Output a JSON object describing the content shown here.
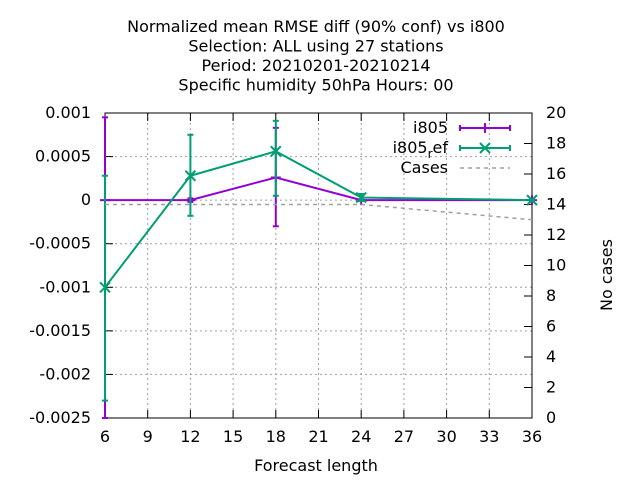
{
  "chart_data": {
    "type": "line",
    "title_lines": [
      "Normalized mean RMSE diff (90% conf) vs i800",
      "Selection: ALL using    27 stations",
      "Period: 20210201-20210214",
      "Specific humidity 50hPa   Hours:  00"
    ],
    "xlabel": "Forecast length",
    "ylabel": "",
    "y2label": "No cases",
    "xlim": [
      6,
      36
    ],
    "ylim": [
      -0.0025,
      0.001
    ],
    "y2lim": [
      0,
      20
    ],
    "xticks": [
      6,
      9,
      12,
      15,
      18,
      21,
      24,
      27,
      30,
      33,
      36
    ],
    "yticks": [
      0.001,
      0.0005,
      0,
      -0.0005,
      -0.001,
      -0.0015,
      -0.002,
      -0.0025
    ],
    "ytick_labels": [
      "0.001",
      "0.0005",
      "0",
      "-0.0005",
      "-0.001",
      "-0.0015",
      "-0.002",
      "-0.0025"
    ],
    "y2ticks": [
      0,
      2,
      4,
      6,
      8,
      10,
      12,
      14,
      16,
      18,
      20
    ],
    "grid": true,
    "legend_position": "top-right",
    "series": [
      {
        "name": "i805",
        "color": "#9400d3",
        "marker": "plus",
        "axis": "y",
        "x": [
          6,
          12,
          18,
          24,
          36
        ],
        "y": [
          0.0,
          0.0,
          0.00026,
          0.0,
          0.0
        ],
        "err_low": [
          -0.0025,
          -2e-05,
          -0.0003,
          -1e-05,
          -1e-05
        ],
        "err_high": [
          0.00095,
          2e-05,
          0.00083,
          1e-05,
          1e-05
        ]
      },
      {
        "name": "i805_ref",
        "legend_base": "i805",
        "legend_sub": "r",
        "legend_tail": "ef",
        "color": "#009e73",
        "marker": "cross",
        "axis": "y",
        "x": [
          6,
          12,
          18,
          24,
          36
        ],
        "y": [
          -0.001,
          0.00028,
          0.00056,
          3e-05,
          0.0
        ],
        "err_low": [
          -0.0023,
          -0.00018,
          5e-05,
          -1e-05,
          -1e-05
        ],
        "err_high": [
          0.00028,
          0.00075,
          0.00091,
          7e-05,
          1e-05
        ]
      },
      {
        "name": "Cases",
        "color": "#a0a0a0",
        "dashed": true,
        "axis": "y2",
        "x": [
          6,
          12,
          18,
          24,
          30,
          36
        ],
        "y": [
          14,
          14,
          14,
          14,
          13.5,
          13
        ]
      }
    ]
  }
}
